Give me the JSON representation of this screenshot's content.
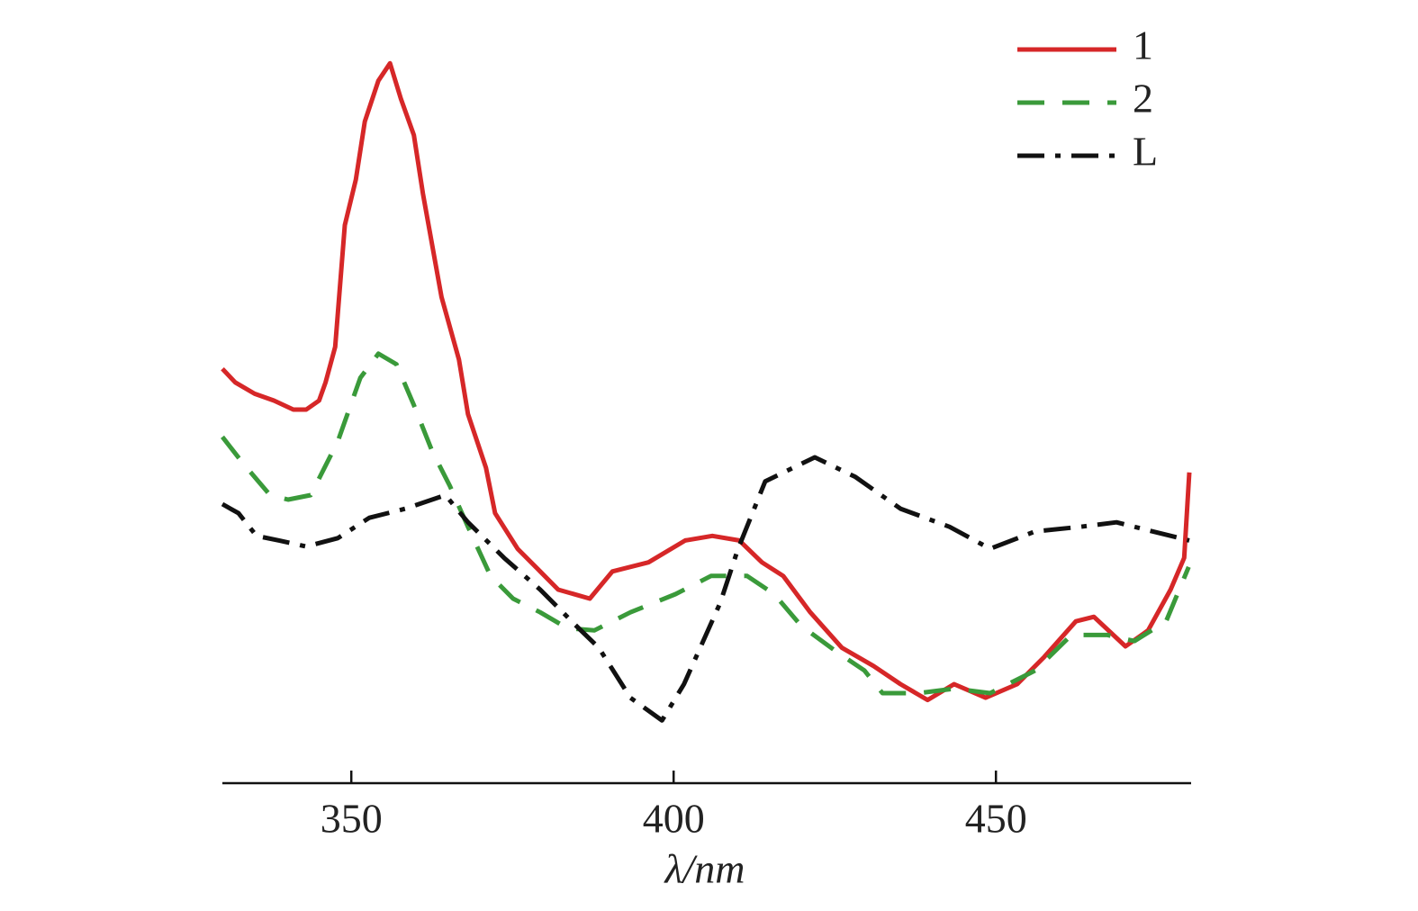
{
  "chart_data": {
    "type": "line",
    "x_label": "λ/nm",
    "xlim": [
      330,
      480
    ],
    "xticks": [
      350,
      400,
      450
    ],
    "ylim": [
      0,
      100
    ],
    "legend": "top-right",
    "series": [
      {
        "name": "1",
        "color": "#d62728",
        "dash": "solid",
        "x": [
          330,
          332,
          335,
          338,
          341,
          343,
          345,
          346,
          347.5,
          349,
          350.7,
          352.1,
          354.2,
          356,
          357.7,
          359.7,
          361.1,
          364,
          366.7,
          368.1,
          370.9,
          372.3,
          375.8,
          379.3,
          382.1,
          387,
          390.5,
          396.1,
          401.8,
          406,
          410.2,
          413.7,
          417,
          421.2,
          426.1,
          431,
          435.2,
          439.4,
          443.5,
          448.4,
          453.3,
          457.5,
          462.4,
          465.2,
          470.1,
          473.6,
          477.1,
          479.2,
          480
        ],
        "values": [
          54.8,
          53.0,
          51.5,
          50.6,
          49.4,
          49.4,
          50.6,
          53.0,
          57.7,
          73.8,
          79.8,
          87.5,
          92.9,
          95.2,
          90.5,
          85.7,
          78.0,
          64.3,
          56.0,
          48.8,
          41.7,
          35.7,
          31.0,
          28.0,
          25.6,
          24.4,
          28.0,
          29.2,
          32.1,
          32.7,
          32.1,
          29.2,
          27.4,
          22.6,
          17.9,
          15.5,
          13.1,
          11.0,
          13.1,
          11.3,
          13.1,
          16.7,
          21.4,
          22.0,
          18.1,
          20.2,
          25.6,
          29.8,
          41.1
        ]
      },
      {
        "name": "2",
        "color": "#3a9a3a",
        "dash": "dashed",
        "x": [
          330,
          333.2,
          337.4,
          340.2,
          343.7,
          347.9,
          351.4,
          354.2,
          357,
          359.7,
          362.5,
          365.3,
          368.1,
          371.6,
          375.1,
          379.3,
          383.5,
          387.7,
          393.3,
          400.3,
          405.8,
          411.4,
          415.6,
          419.8,
          425.4,
          429.6,
          432.4,
          438,
          443.5,
          449.1,
          456.1,
          461.7,
          467.3,
          471.5,
          476.4,
          479.9
        ],
        "values": [
          45.8,
          42.3,
          38.1,
          37.5,
          38.1,
          45.2,
          53.6,
          56.8,
          55.4,
          50.0,
          44.0,
          39.3,
          33.9,
          27.4,
          24.4,
          22.6,
          20.5,
          20.2,
          22.6,
          25.0,
          27.4,
          27.4,
          25.0,
          20.8,
          17.3,
          14.9,
          11.9,
          11.9,
          12.5,
          11.9,
          14.9,
          19.6,
          19.6,
          18.8,
          21.4,
          28.6
        ]
      },
      {
        "name": "L",
        "color": "#111111",
        "dash": "dashdot",
        "x": [
          330,
          332.5,
          335.3,
          338.8,
          343,
          347.9,
          352.8,
          358.4,
          364.6,
          368.1,
          373.7,
          379.3,
          384.9,
          388.4,
          393.3,
          398.2,
          401.6,
          407.2,
          410,
          414.2,
          421.9,
          428.2,
          435.2,
          442.8,
          449.1,
          456.1,
          463.1,
          468.7,
          474.3,
          480
        ],
        "values": [
          36.9,
          35.7,
          32.7,
          32.1,
          31.3,
          32.4,
          35.1,
          36.3,
          38.1,
          34.5,
          29.8,
          25.6,
          20.8,
          17.9,
          11.3,
          8.3,
          13.1,
          23.8,
          31.0,
          39.9,
          43.1,
          40.5,
          36.3,
          33.9,
          31.0,
          33.3,
          33.9,
          34.5,
          33.3,
          32.1
        ]
      }
    ]
  }
}
